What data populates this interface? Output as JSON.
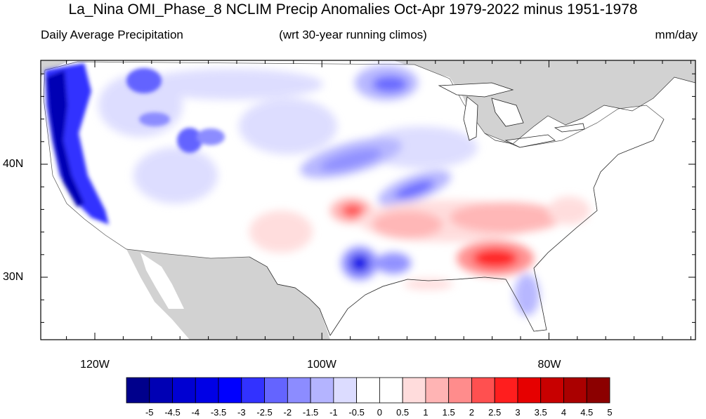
{
  "title": "La_Nina OMI_Phase_8 NCLIM Precip Anomalies Oct-Apr 1979-2022 minus 1951-1978",
  "subtitle_left": "Daily Average Precipitation",
  "subtitle_center": "(wrt 30-year running climos)",
  "subtitle_right": "mm/day",
  "lat_labels": [
    "40N",
    "30N"
  ],
  "lon_labels": [
    "120W",
    "100W",
    "80W"
  ],
  "colorbar": {
    "labels": [
      "-5",
      "-4.5",
      "-4",
      "-3.5",
      "-3",
      "-2.5",
      "-2",
      "-1.5",
      "-1",
      "-0.5",
      "0",
      "0.5",
      "1",
      "1.5",
      "2",
      "2.5",
      "3",
      "3.5",
      "4",
      "4.5",
      "5"
    ],
    "colors": [
      "#00008c",
      "#0000b4",
      "#0000d2",
      "#0000e6",
      "#0000ff",
      "#3232ff",
      "#6464ff",
      "#8c8cff",
      "#b4b4ff",
      "#dcdcff",
      "#ffffff",
      "#ffffff",
      "#ffdcdc",
      "#ffb4b4",
      "#ff8c8c",
      "#ff5050",
      "#ff1e1e",
      "#e60000",
      "#c80000",
      "#aa0000",
      "#8c0000"
    ]
  },
  "colors": {
    "land_mask": "#d2d2d2",
    "ocean": "#ffffff"
  }
}
